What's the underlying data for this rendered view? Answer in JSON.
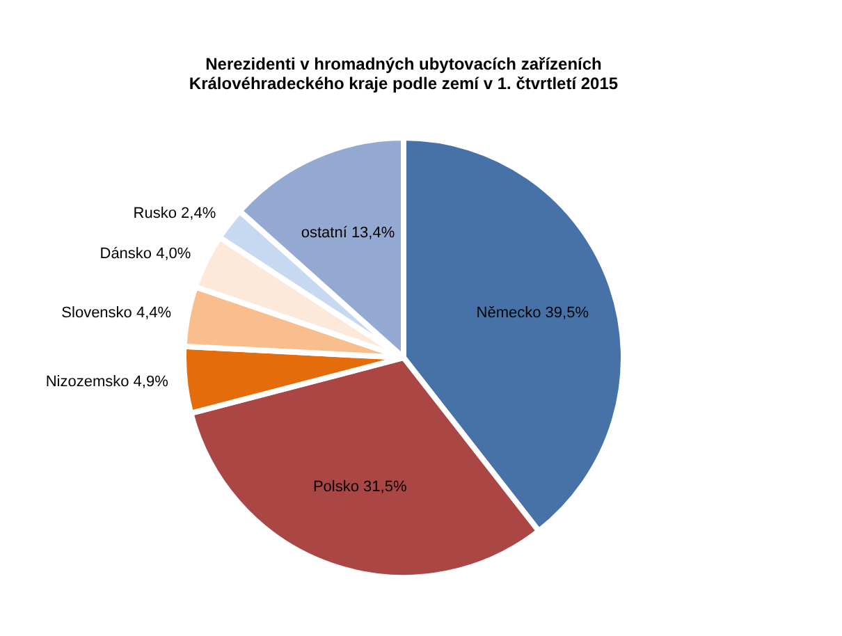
{
  "chart_data": {
    "type": "pie",
    "title": [
      "Nerezidenti v hromadných ubytovacích zařízeních",
      "Královéhradeckého kraje podle zemí v 1. čtvrtletí 2015"
    ],
    "categories": [
      "Německo",
      "Polsko",
      "Nizozemsko",
      "Slovensko",
      "Dánsko",
      "Rusko",
      "ostatní"
    ],
    "values": [
      39.5,
      31.5,
      4.9,
      4.4,
      4.0,
      2.4,
      13.4
    ],
    "value_labels": [
      "39,5%",
      "31,5%",
      "4,9%",
      "4,4%",
      "4,0%",
      "2,4%",
      "13,4%"
    ],
    "colors": [
      "#4672a8",
      "#aa4644",
      "#e46c0a",
      "#f9be8e",
      "#fde9d9",
      "#c6d9f1",
      "#94a9d1"
    ],
    "legend": false
  }
}
